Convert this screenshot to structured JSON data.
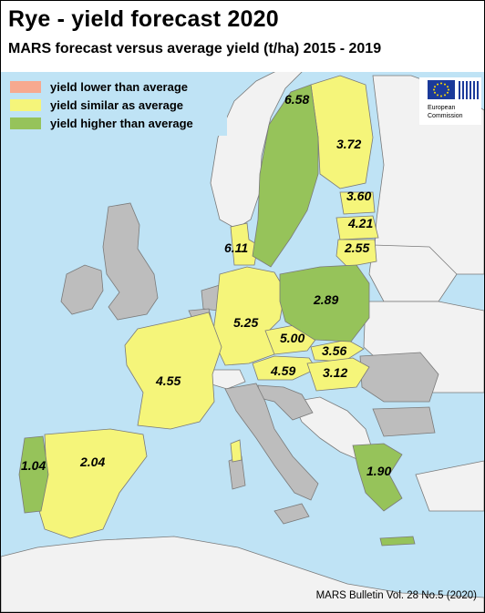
{
  "title": "Rye - yield forecast 2020",
  "subtitle": "MARS forecast versus average yield (t/ha) 2015 - 2019",
  "legend": [
    {
      "label": "yield lower than average",
      "color": "#f7a98f"
    },
    {
      "label": "yield similar as average",
      "color": "#f5f57a"
    },
    {
      "label": "yield higher than average",
      "color": "#96c35a"
    }
  ],
  "logo": {
    "line1": "European",
    "line2": "Commission",
    "icon": "eu-flag-icon"
  },
  "colors": {
    "sea": "#bfe3f5",
    "non_eu": "#f2f2f2",
    "eu_no_data": "#bdbdbd",
    "border": "#666666"
  },
  "countries": [
    {
      "id": "sweden",
      "value": "6.58",
      "category": "higher"
    },
    {
      "id": "finland",
      "value": "3.72",
      "category": "similar"
    },
    {
      "id": "estonia",
      "value": "3.60",
      "category": "similar"
    },
    {
      "id": "latvia",
      "value": "4.21",
      "category": "similar"
    },
    {
      "id": "lithuania",
      "value": "2.55",
      "category": "similar"
    },
    {
      "id": "denmark",
      "value": "6.11",
      "category": "similar"
    },
    {
      "id": "poland",
      "value": "2.89",
      "category": "higher"
    },
    {
      "id": "germany",
      "value": "5.25",
      "category": "similar"
    },
    {
      "id": "czechia",
      "value": "5.00",
      "category": "similar"
    },
    {
      "id": "slovakia",
      "value": "3.56",
      "category": "similar"
    },
    {
      "id": "austria",
      "value": "4.59",
      "category": "similar"
    },
    {
      "id": "hungary",
      "value": "3.12",
      "category": "similar"
    },
    {
      "id": "france",
      "value": "4.55",
      "category": "similar"
    },
    {
      "id": "spain",
      "value": "2.04",
      "category": "similar"
    },
    {
      "id": "portugal",
      "value": "1.04",
      "category": "higher"
    },
    {
      "id": "greece",
      "value": "1.90",
      "category": "higher"
    }
  ],
  "credit": "MARS Bulletin Vol. 28 No.5 (2020)"
}
